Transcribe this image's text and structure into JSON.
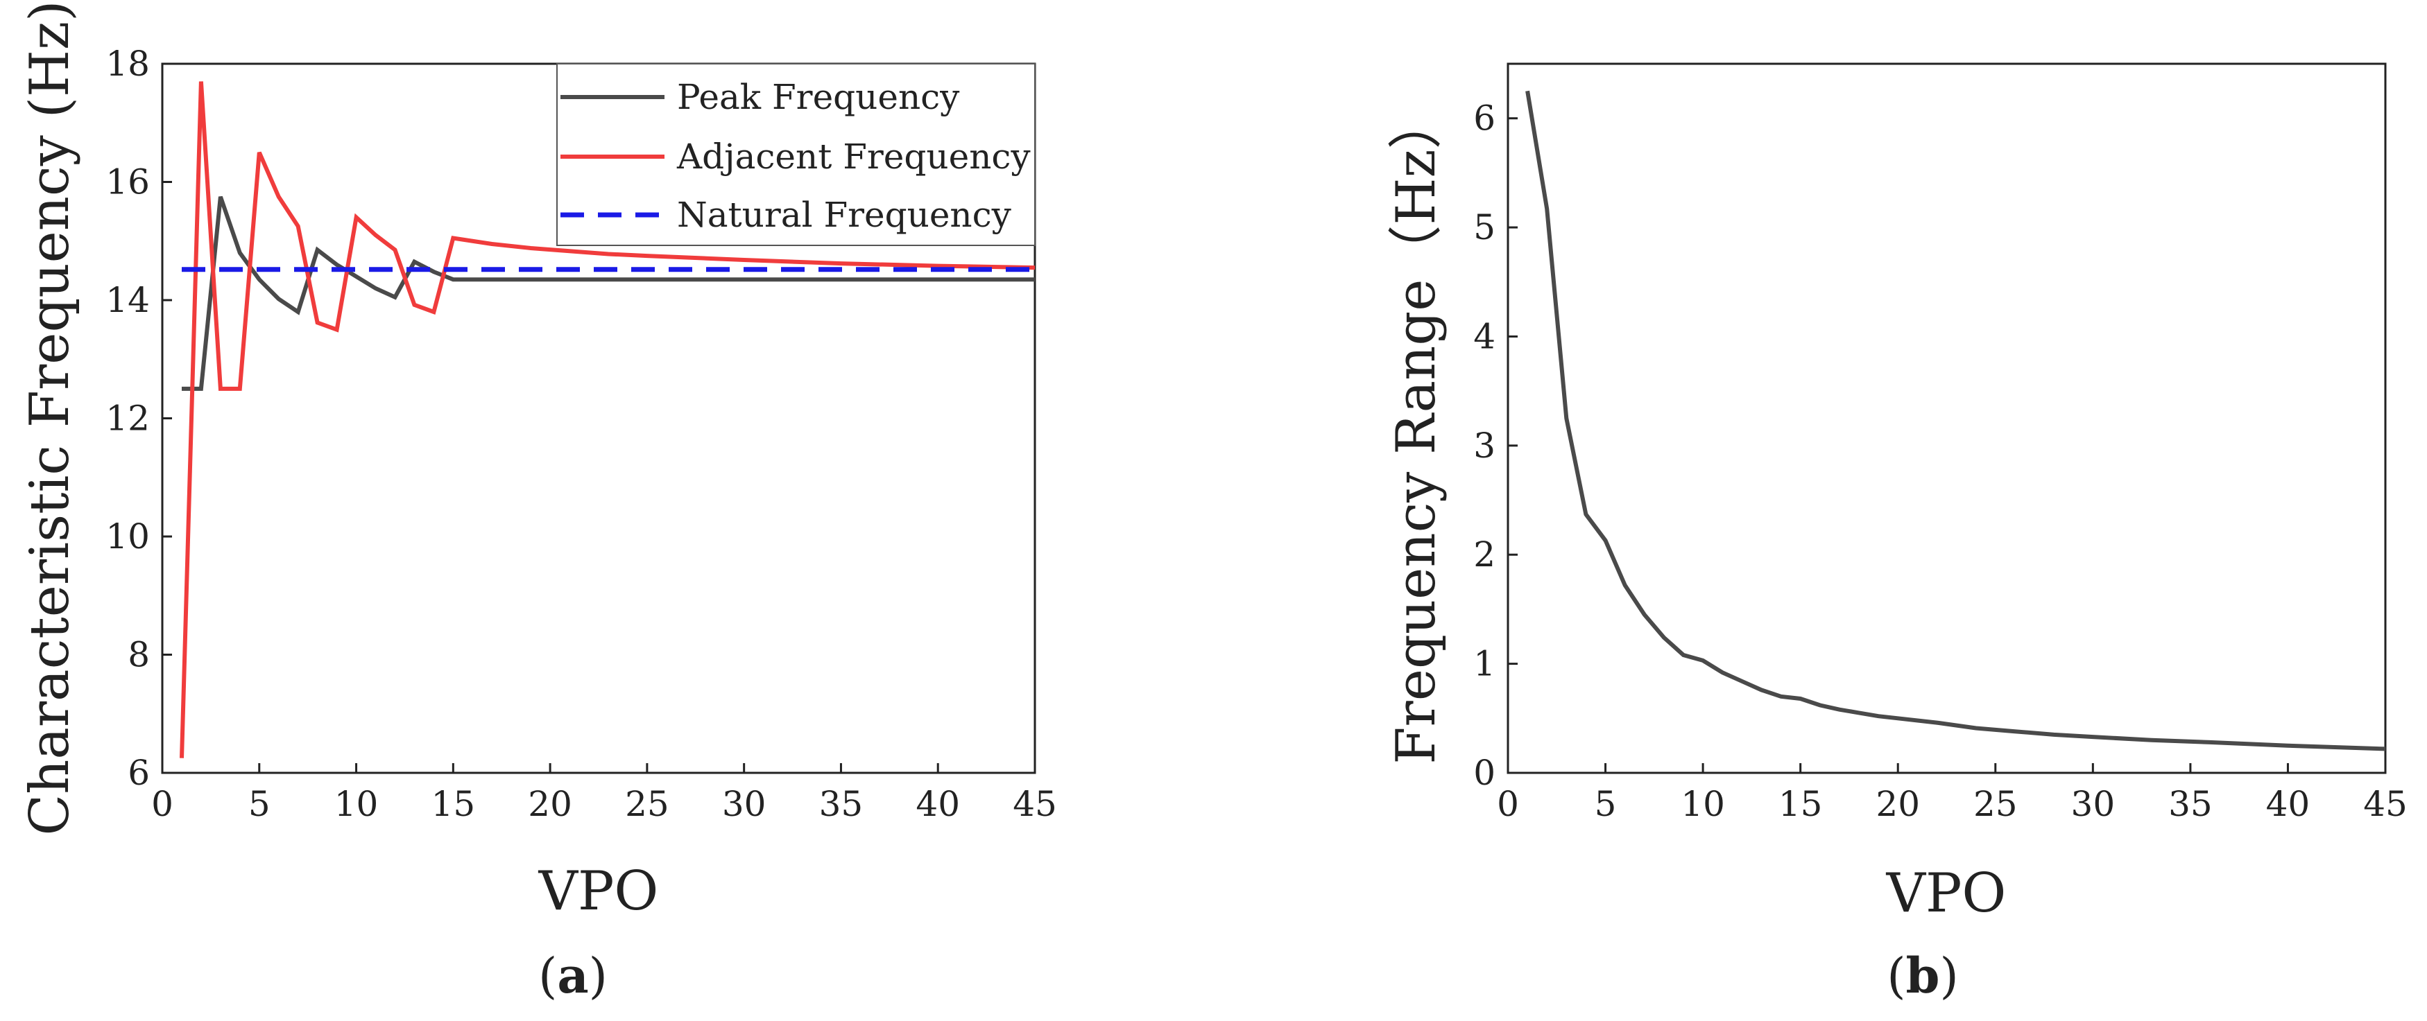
{
  "chart_data": [
    {
      "type": "line",
      "panel_label": "a",
      "xlabel": "VPO",
      "ylabel": "Characteristic Frequency (Hz)",
      "xlim": [
        0,
        45
      ],
      "ylim": [
        6,
        18
      ],
      "xticks": [
        0,
        5,
        10,
        15,
        20,
        25,
        30,
        35,
        40,
        45
      ],
      "yticks": [
        6,
        8,
        10,
        12,
        14,
        16,
        18
      ],
      "grid": false,
      "legend_position": "top-right",
      "series": [
        {
          "name": "Peak Frequency",
          "color": "#4a4a4a",
          "style": "solid",
          "x": [
            1,
            2,
            3,
            4,
            5,
            6,
            7,
            8,
            9,
            10,
            11,
            12,
            13,
            14,
            15,
            16,
            20,
            25,
            30,
            35,
            40,
            45
          ],
          "y": [
            12.5,
            12.5,
            15.75,
            14.8,
            14.35,
            14.02,
            13.8,
            14.85,
            14.6,
            14.4,
            14.2,
            14.05,
            14.65,
            14.48,
            14.35,
            14.35,
            14.35,
            14.35,
            14.35,
            14.35,
            14.35,
            14.35
          ]
        },
        {
          "name": "Adjacent Frequency",
          "color": "#f03c3c",
          "style": "solid",
          "x": [
            1,
            2,
            3,
            4,
            5,
            6,
            7,
            8,
            9,
            10,
            11,
            12,
            13,
            14,
            15,
            17,
            19,
            21,
            23,
            25,
            30,
            35,
            40,
            45
          ],
          "y": [
            6.25,
            17.7,
            12.5,
            12.5,
            16.5,
            15.75,
            15.25,
            13.62,
            13.5,
            15.4,
            15.1,
            14.85,
            13.92,
            13.8,
            15.05,
            14.95,
            14.88,
            14.83,
            14.78,
            14.75,
            14.68,
            14.62,
            14.58,
            14.55
          ]
        },
        {
          "name": "Natural Frequency",
          "color": "#1a1ae6",
          "style": "dashed",
          "x": [
            1,
            45
          ],
          "y": [
            14.52,
            14.52
          ]
        }
      ]
    },
    {
      "type": "line",
      "panel_label": "b",
      "xlabel": "VPO",
      "ylabel": "Frequency Range（Hz）",
      "xlim": [
        0,
        45
      ],
      "ylim": [
        0,
        6.5
      ],
      "xticks": [
        0,
        5,
        10,
        15,
        20,
        25,
        30,
        35,
        40,
        45
      ],
      "yticks": [
        0,
        1,
        2,
        3,
        4,
        5,
        6
      ],
      "grid": false,
      "series": [
        {
          "color": "#4a4a4a",
          "style": "solid",
          "x": [
            1,
            2,
            3,
            4,
            5,
            6,
            7,
            8,
            9,
            10,
            11,
            12,
            13,
            14,
            15,
            16,
            17,
            18,
            19,
            20,
            22,
            24,
            26,
            28,
            30,
            33,
            36,
            40,
            45
          ],
          "y": [
            6.25,
            5.17,
            3.25,
            2.37,
            2.13,
            1.72,
            1.45,
            1.24,
            1.08,
            1.03,
            0.92,
            0.84,
            0.76,
            0.7,
            0.68,
            0.62,
            0.58,
            0.55,
            0.52,
            0.5,
            0.46,
            0.41,
            0.38,
            0.35,
            0.33,
            0.3,
            0.28,
            0.25,
            0.22
          ]
        }
      ]
    }
  ]
}
